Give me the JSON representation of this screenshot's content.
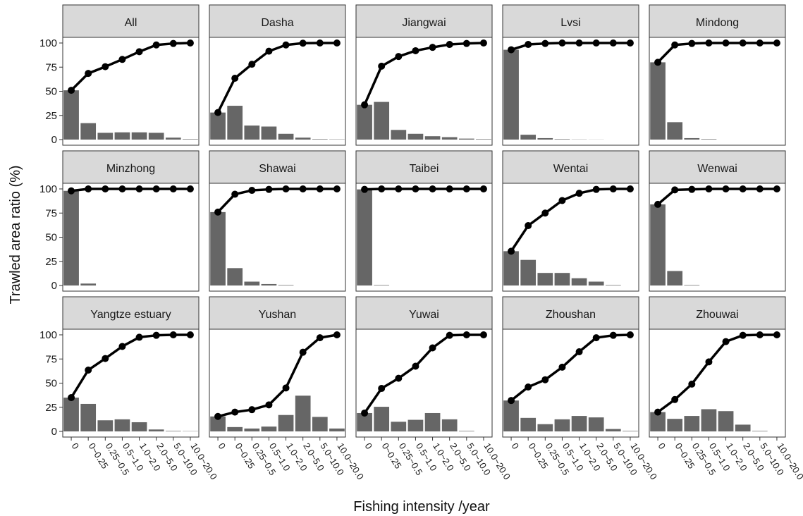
{
  "chart_data": {
    "type": "bar",
    "xlabel": "Fishing intensity /year",
    "ylabel": "Trawled area ratio (%)",
    "ylim": [
      0,
      100
    ],
    "yticks": [
      0,
      25,
      50,
      75,
      100
    ],
    "categories": [
      "0",
      "0~0.25",
      "0.25~0.5",
      "0.5~1.0",
      "1.0~2.0",
      "2.0~5.0",
      "5.0~10.0",
      "10.0~20.0"
    ],
    "colors": {
      "bar": "#666666",
      "line": "#000000",
      "strip": "#d9d9d9",
      "panel_border": "#333333"
    },
    "panels": [
      {
        "title": "All",
        "bars": [
          51,
          17,
          7,
          7.5,
          7.5,
          7,
          2,
          0.5
        ],
        "cumulative": [
          51,
          68.5,
          75.5,
          83,
          91,
          98,
          99.5,
          100
        ]
      },
      {
        "title": "Dasha",
        "bars": [
          28,
          35,
          14.5,
          13.5,
          6,
          2,
          0.5,
          0.3
        ],
        "cumulative": [
          28,
          63.5,
          78,
          91.5,
          98,
          99.8,
          100,
          100
        ]
      },
      {
        "title": "Jiangwai",
        "bars": [
          36,
          39,
          10,
          6,
          3.5,
          2.5,
          1,
          0.5
        ],
        "cumulative": [
          36,
          76,
          86,
          92,
          95.5,
          98.5,
          99.5,
          100
        ]
      },
      {
        "title": "Lvsi",
        "bars": [
          93,
          5,
          1.5,
          0.5,
          0.2,
          0.1,
          0,
          0
        ],
        "cumulative": [
          93,
          98.5,
          99.5,
          100,
          100,
          100,
          100,
          100
        ]
      },
      {
        "title": "Mindong",
        "bars": [
          80,
          18,
          1.5,
          0.5,
          0,
          0,
          0,
          0
        ],
        "cumulative": [
          80,
          98,
          99.5,
          100,
          100,
          100,
          100,
          100
        ]
      },
      {
        "title": "Minzhong",
        "bars": [
          98,
          2,
          0,
          0,
          0,
          0,
          0,
          0
        ],
        "cumulative": [
          98,
          100,
          100,
          100,
          100,
          100,
          100,
          100
        ]
      },
      {
        "title": "Shawai",
        "bars": [
          76,
          18,
          4,
          1.5,
          0.5,
          0,
          0,
          0
        ],
        "cumulative": [
          76,
          94.5,
          98.5,
          99.5,
          100,
          100,
          100,
          100
        ]
      },
      {
        "title": "Taibei",
        "bars": [
          99.5,
          0.5,
          0,
          0,
          0,
          0,
          0,
          0
        ],
        "cumulative": [
          99.5,
          100,
          100,
          100,
          100,
          100,
          100,
          100
        ]
      },
      {
        "title": "Wentai",
        "bars": [
          35.5,
          26.5,
          13,
          13,
          7.5,
          4,
          0.5,
          0
        ],
        "cumulative": [
          35.5,
          62,
          75,
          88,
          95.5,
          99.5,
          100,
          100
        ]
      },
      {
        "title": "Wenwai",
        "bars": [
          84,
          15,
          0.5,
          0,
          0,
          0,
          0,
          0
        ],
        "cumulative": [
          84,
          99,
          99.5,
          100,
          100,
          100,
          100,
          100
        ]
      },
      {
        "title": "Yangtze estuary",
        "bars": [
          35,
          28.5,
          11.5,
          12.5,
          9.5,
          2,
          0.5,
          0.3
        ],
        "cumulative": [
          35,
          63.5,
          75.5,
          88,
          97.5,
          99.5,
          100,
          100
        ]
      },
      {
        "title": "Yushan",
        "bars": [
          15.5,
          4.5,
          3,
          5,
          17,
          37,
          15,
          3
        ],
        "cumulative": [
          15.5,
          20,
          22.5,
          27.5,
          45,
          82,
          97,
          100
        ]
      },
      {
        "title": "Yuwai",
        "bars": [
          19,
          25.5,
          10,
          12,
          19,
          12.5,
          0.5,
          0
        ],
        "cumulative": [
          19,
          44.5,
          55,
          67.5,
          86.5,
          99.5,
          100,
          100
        ]
      },
      {
        "title": "Zhoushan",
        "bars": [
          32,
          14,
          7.5,
          12.5,
          16,
          14.5,
          2.5,
          0.5
        ],
        "cumulative": [
          32,
          46,
          53.5,
          66.5,
          82.5,
          97,
          99.5,
          100
        ]
      },
      {
        "title": "Zhouwai",
        "bars": [
          20,
          13,
          16,
          23,
          21,
          7,
          0.5,
          0
        ],
        "cumulative": [
          20,
          33,
          49,
          72,
          93,
          99.5,
          100,
          100
        ]
      }
    ]
  }
}
